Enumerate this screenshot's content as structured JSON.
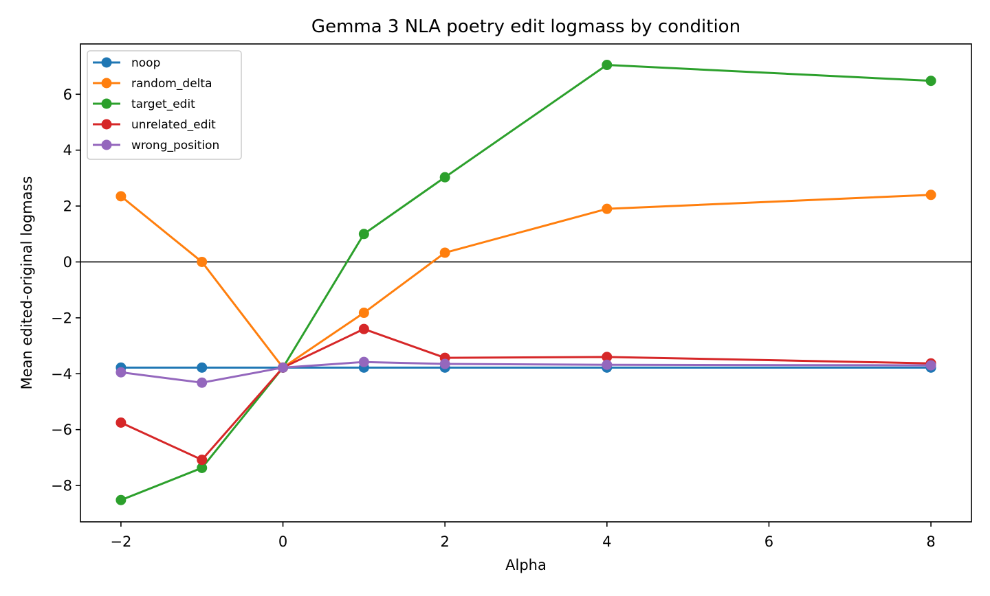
{
  "chart_data": {
    "type": "line",
    "title": "Gemma 3 NLA poetry edit logmass by condition",
    "xlabel": "Alpha",
    "ylabel": "Mean edited-original logmass",
    "x": [
      -2,
      -1,
      0,
      1,
      2,
      4,
      8
    ],
    "xlim": [
      -2.5,
      8.5
    ],
    "ylim": [
      -9.3,
      7.8
    ],
    "xticks": [
      -2,
      0,
      2,
      4,
      6,
      8
    ],
    "xtick_labels": [
      "−2",
      "0",
      "2",
      "4",
      "6",
      "8"
    ],
    "yticks": [
      -8,
      -6,
      -4,
      -2,
      0,
      2,
      4,
      6
    ],
    "ytick_labels": [
      "−8",
      "−6",
      "−4",
      "−2",
      "0",
      "2",
      "4",
      "6"
    ],
    "grid": false,
    "legend_position": "top-left",
    "reference_line": {
      "y": 0,
      "color": "#000000"
    },
    "series": [
      {
        "name": "noop",
        "color": "#1f77b4",
        "values": [
          -3.78,
          -3.78,
          -3.78,
          -3.78,
          -3.78,
          -3.78,
          -3.78
        ]
      },
      {
        "name": "random_delta",
        "color": "#ff7f0e",
        "values": [
          2.35,
          0.0,
          -3.78,
          -1.82,
          0.33,
          1.9,
          2.4
        ]
      },
      {
        "name": "target_edit",
        "color": "#2ca02c",
        "values": [
          -8.52,
          -7.37,
          -3.78,
          1.0,
          3.03,
          7.05,
          6.48
        ]
      },
      {
        "name": "unrelated_edit",
        "color": "#d62728",
        "values": [
          -5.75,
          -7.08,
          -3.78,
          -2.4,
          -3.43,
          -3.4,
          -3.63
        ]
      },
      {
        "name": "wrong_position",
        "color": "#9467bd",
        "values": [
          -3.95,
          -4.32,
          -3.78,
          -3.58,
          -3.65,
          -3.68,
          -3.7
        ]
      }
    ]
  }
}
